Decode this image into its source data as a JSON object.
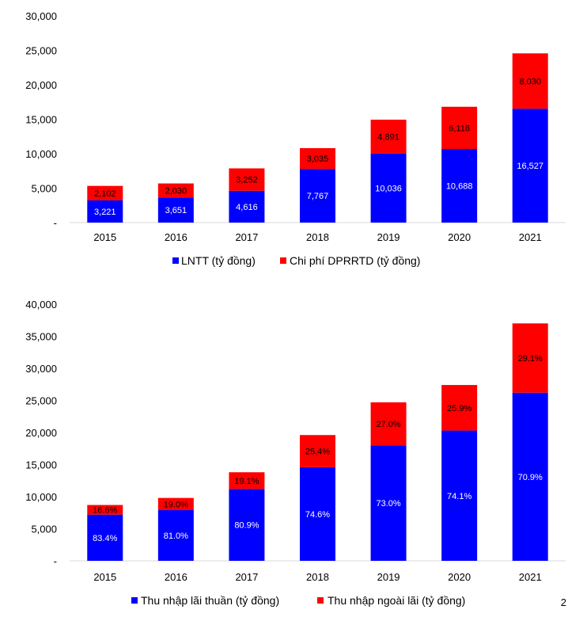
{
  "chart_data": [
    {
      "type": "bar",
      "stacked": true,
      "title": "",
      "xlabel": "",
      "ylabel": "",
      "categories": [
        "2015",
        "2016",
        "2017",
        "2018",
        "2019",
        "2020",
        "2021"
      ],
      "ylim": [
        0,
        30000
      ],
      "yticks": [
        "-",
        "5,000",
        "10,000",
        "15,000",
        "20,000",
        "25,000",
        "30,000"
      ],
      "grid": false,
      "legend": "bottom",
      "series": [
        {
          "name": "LNTT (tỷ đồng)",
          "color": "#0000ff",
          "values": [
            3221,
            3651,
            4616,
            7767,
            10036,
            10688,
            16527
          ],
          "labels": [
            "3,221",
            "3,651",
            "4,616",
            "7,767",
            "10,036",
            "10,688",
            "16,527"
          ]
        },
        {
          "name": "Chi phí DPRRTD (tỷ đồng)",
          "color": "#ff0000",
          "values": [
            2102,
            2030,
            3252,
            3035,
            4891,
            6118,
            8030
          ],
          "labels": [
            "2,102",
            "2,030",
            "3,252",
            "3,035",
            "4,891",
            "6,118",
            "8,030"
          ]
        }
      ]
    },
    {
      "type": "bar",
      "stacked": true,
      "title": "",
      "xlabel": "",
      "ylabel": "",
      "categories": [
        "2015",
        "2016",
        "2017",
        "2018",
        "2019",
        "2020",
        "2021"
      ],
      "ylim": [
        0,
        40000
      ],
      "yticks": [
        "-",
        "5,000",
        "10,000",
        "15,000",
        "20,000",
        "25,000",
        "30,000",
        "35,000",
        "40,000"
      ],
      "grid": false,
      "legend": "bottom",
      "series": [
        {
          "name": "Thu nhập lãi thuần (tỷ đồng)",
          "color": "#0000ff",
          "values": [
            7200,
            7900,
            11200,
            14600,
            18000,
            20300,
            26200
          ],
          "labels": [
            "83.4%",
            "81.0%",
            "80.9%",
            "74.6%",
            "73.0%",
            "74.1%",
            "70.9%"
          ]
        },
        {
          "name": "Thu nhập ngoài lãi (tỷ đồng)",
          "color": "#ff0000",
          "values": [
            1500,
            1900,
            2600,
            5000,
            6700,
            7100,
            10800
          ],
          "labels": [
            "16.6%",
            "19.0%",
            "19.1%",
            "25.4%",
            "27.0%",
            "25.9%",
            "29.1%"
          ]
        }
      ]
    }
  ],
  "page_marker": "2"
}
